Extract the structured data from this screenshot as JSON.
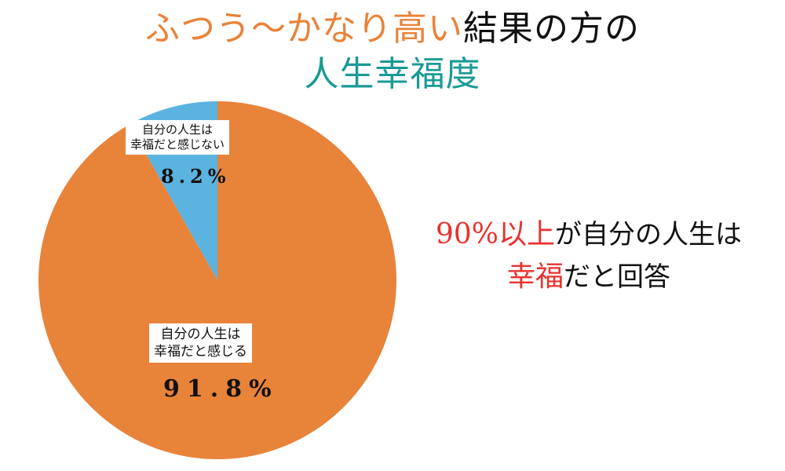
{
  "header": {
    "line1_highlight": "ふつう〜かなり高い",
    "line1_rest": "結果の方の",
    "line2": "人生幸福度"
  },
  "chart_data": {
    "type": "pie",
    "slices": [
      {
        "label": "自分の人生は 幸福だと感じない",
        "label_line1": "自分の人生は",
        "label_line2": "幸福だと感じない",
        "value": 8.2,
        "value_text": "8.2%",
        "color": "#5bb3e0"
      },
      {
        "label": "自分の人生は 幸福だと感じる",
        "label_line1": "自分の人生は",
        "label_line2": "幸福だと感じる",
        "value": 91.8,
        "value_text": "91.8%",
        "color": "#e8833a"
      }
    ]
  },
  "annotation": {
    "part1_red": "90%以上",
    "part2": "が自分の人生は",
    "part3_red": "幸福",
    "part4": "だと回答"
  },
  "colors": {
    "orange": "#e8833a",
    "blue": "#5bb3e0",
    "teal": "#1a9a94",
    "red": "#e8322e"
  }
}
